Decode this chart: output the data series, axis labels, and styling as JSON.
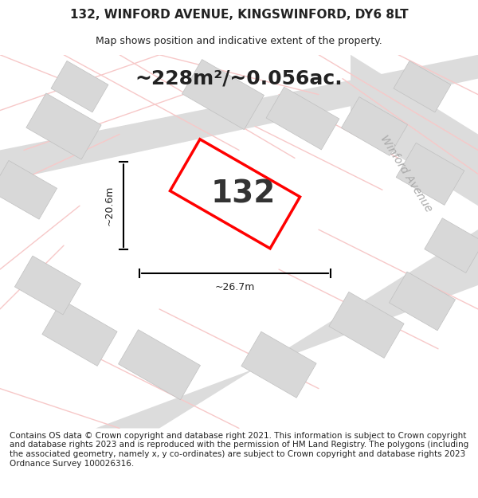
{
  "title_line1": "132, WINFORD AVENUE, KINGSWINFORD, DY6 8LT",
  "title_line2": "Map shows position and indicative extent of the property.",
  "area_text": "~228m²/~0.056ac.",
  "property_number": "132",
  "width_label": "~26.7m",
  "height_label": "~20.6m",
  "street_label": "Winford Avenue",
  "footer_text": "Contains OS data © Crown copyright and database right 2021. This information is subject to Crown copyright and database rights 2023 and is reproduced with the permission of HM Land Registry. The polygons (including the associated geometry, namely x, y co-ordinates) are subject to Crown copyright and database rights 2023 Ordnance Survey 100026316.",
  "bg_color": "#f5f5f5",
  "map_bg_color": "#f0f0f0",
  "road_color_light": "#f7c8c8",
  "road_color_dark": "#e8e8e8",
  "plot_color": "#ffffff",
  "plot_border_color": "#ff0000",
  "dim_line_color": "#000000",
  "title_fontsize": 11,
  "subtitle_fontsize": 9,
  "area_fontsize": 18,
  "number_fontsize": 28,
  "label_fontsize": 9,
  "street_fontsize": 10,
  "footer_fontsize": 7.5
}
